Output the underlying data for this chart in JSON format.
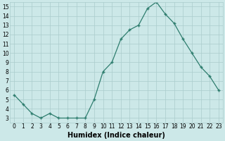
{
  "x": [
    0,
    1,
    2,
    3,
    4,
    5,
    6,
    7,
    8,
    9,
    10,
    11,
    12,
    13,
    14,
    15,
    16,
    17,
    18,
    19,
    20,
    21,
    22,
    23
  ],
  "y": [
    5.5,
    4.5,
    3.5,
    3.0,
    3.5,
    3.0,
    3.0,
    3.0,
    3.0,
    5.0,
    8.0,
    9.0,
    11.5,
    12.5,
    13.0,
    14.8,
    15.5,
    14.2,
    13.2,
    11.5,
    10.0,
    8.5,
    7.5,
    6.0
  ],
  "line_color": "#2e7d6e",
  "marker": "+",
  "marker_size": 3,
  "marker_linewidth": 1.0,
  "linewidth": 0.9,
  "bg_color": "#cce8e8",
  "grid_color": "#aacccc",
  "xlabel": "Humidex (Indice chaleur)",
  "xlim": [
    -0.5,
    23.5
  ],
  "ylim": [
    2.5,
    15.5
  ],
  "yticks": [
    3,
    4,
    5,
    6,
    7,
    8,
    9,
    10,
    11,
    12,
    13,
    14,
    15
  ],
  "xticks": [
    0,
    1,
    2,
    3,
    4,
    5,
    6,
    7,
    8,
    9,
    10,
    11,
    12,
    13,
    14,
    15,
    16,
    17,
    18,
    19,
    20,
    21,
    22,
    23
  ],
  "tick_fontsize": 5.5,
  "label_fontsize": 7.0
}
